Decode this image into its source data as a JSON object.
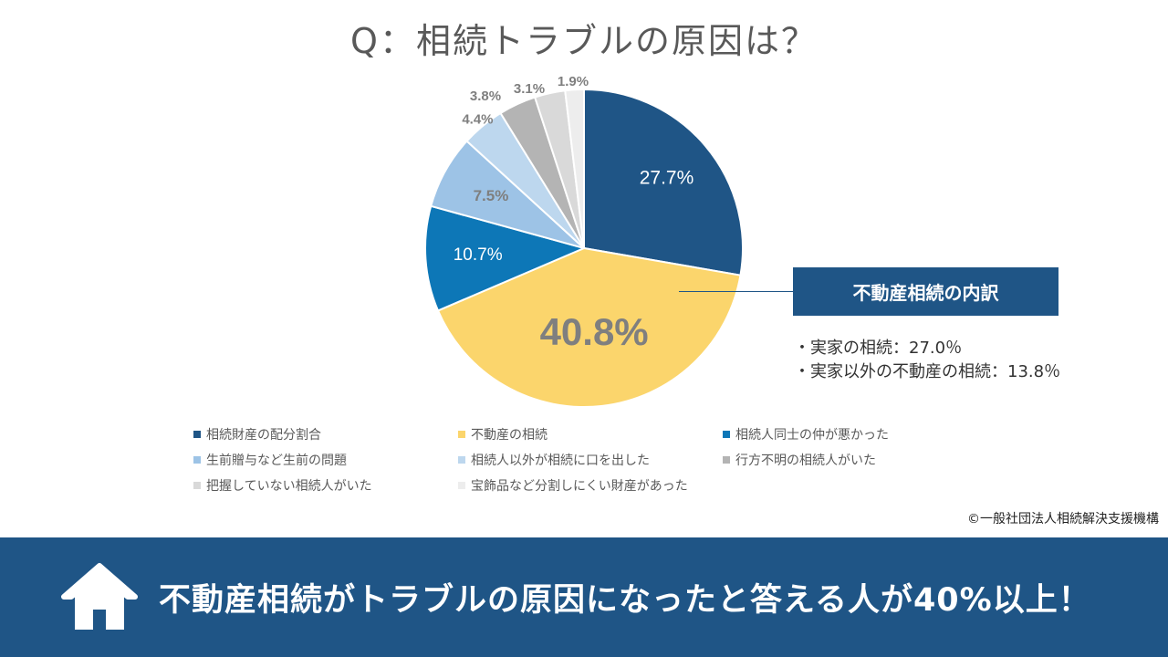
{
  "title": "Q：相続トラブルの原因は？",
  "chart_data": {
    "type": "pie",
    "title": "Q：相続トラブルの原因は？",
    "slices": [
      {
        "name": "相続財産の配分割合",
        "value": 27.7,
        "label": "27.7%",
        "color": "#1f5586",
        "label_color": "#ffffff"
      },
      {
        "name": "不動産の相続",
        "value": 40.8,
        "label": "40.8%",
        "color": "#fbd56c",
        "label_color": "#7f7f7f"
      },
      {
        "name": "相続人同士の仲が悪かった",
        "value": 10.7,
        "label": "10.7%",
        "color": "#0d77b7",
        "label_color": "#ffffff"
      },
      {
        "name": "生前贈与など生前の問題",
        "value": 7.5,
        "label": "7.5%",
        "color": "#9dc3e6",
        "label_color": "#7f7f7f"
      },
      {
        "name": "相続人以外が相続に口を出した",
        "value": 4.4,
        "label": "4.4%",
        "color": "#bdd7ee",
        "label_color": "#7f7f7f"
      },
      {
        "name": "行方不明の相続人がいた",
        "value": 3.8,
        "label": "3.8%",
        "color": "#b4b4b4",
        "label_color": "#7f7f7f"
      },
      {
        "name": "把握していない相続人がいた",
        "value": 3.1,
        "label": "3.1%",
        "color": "#d9d9d9",
        "label_color": "#7f7f7f"
      },
      {
        "name": "宝飾品など分割しにくい財産があった",
        "value": 1.9,
        "label": "1.9%",
        "color": "#ededed",
        "label_color": "#7f7f7f"
      }
    ],
    "legend_placement": "bottom"
  },
  "callout": {
    "title": "不動産相続の内訳",
    "items": [
      "・実家の相続：27.0％",
      "・実家以外の不動産の相続：13.8％"
    ]
  },
  "credit": "©一般社団法人相続解決支援機構",
  "banner": {
    "text": "不動産相続がトラブルの原因になったと答える人が40%以上！",
    "icon": "house-icon"
  }
}
